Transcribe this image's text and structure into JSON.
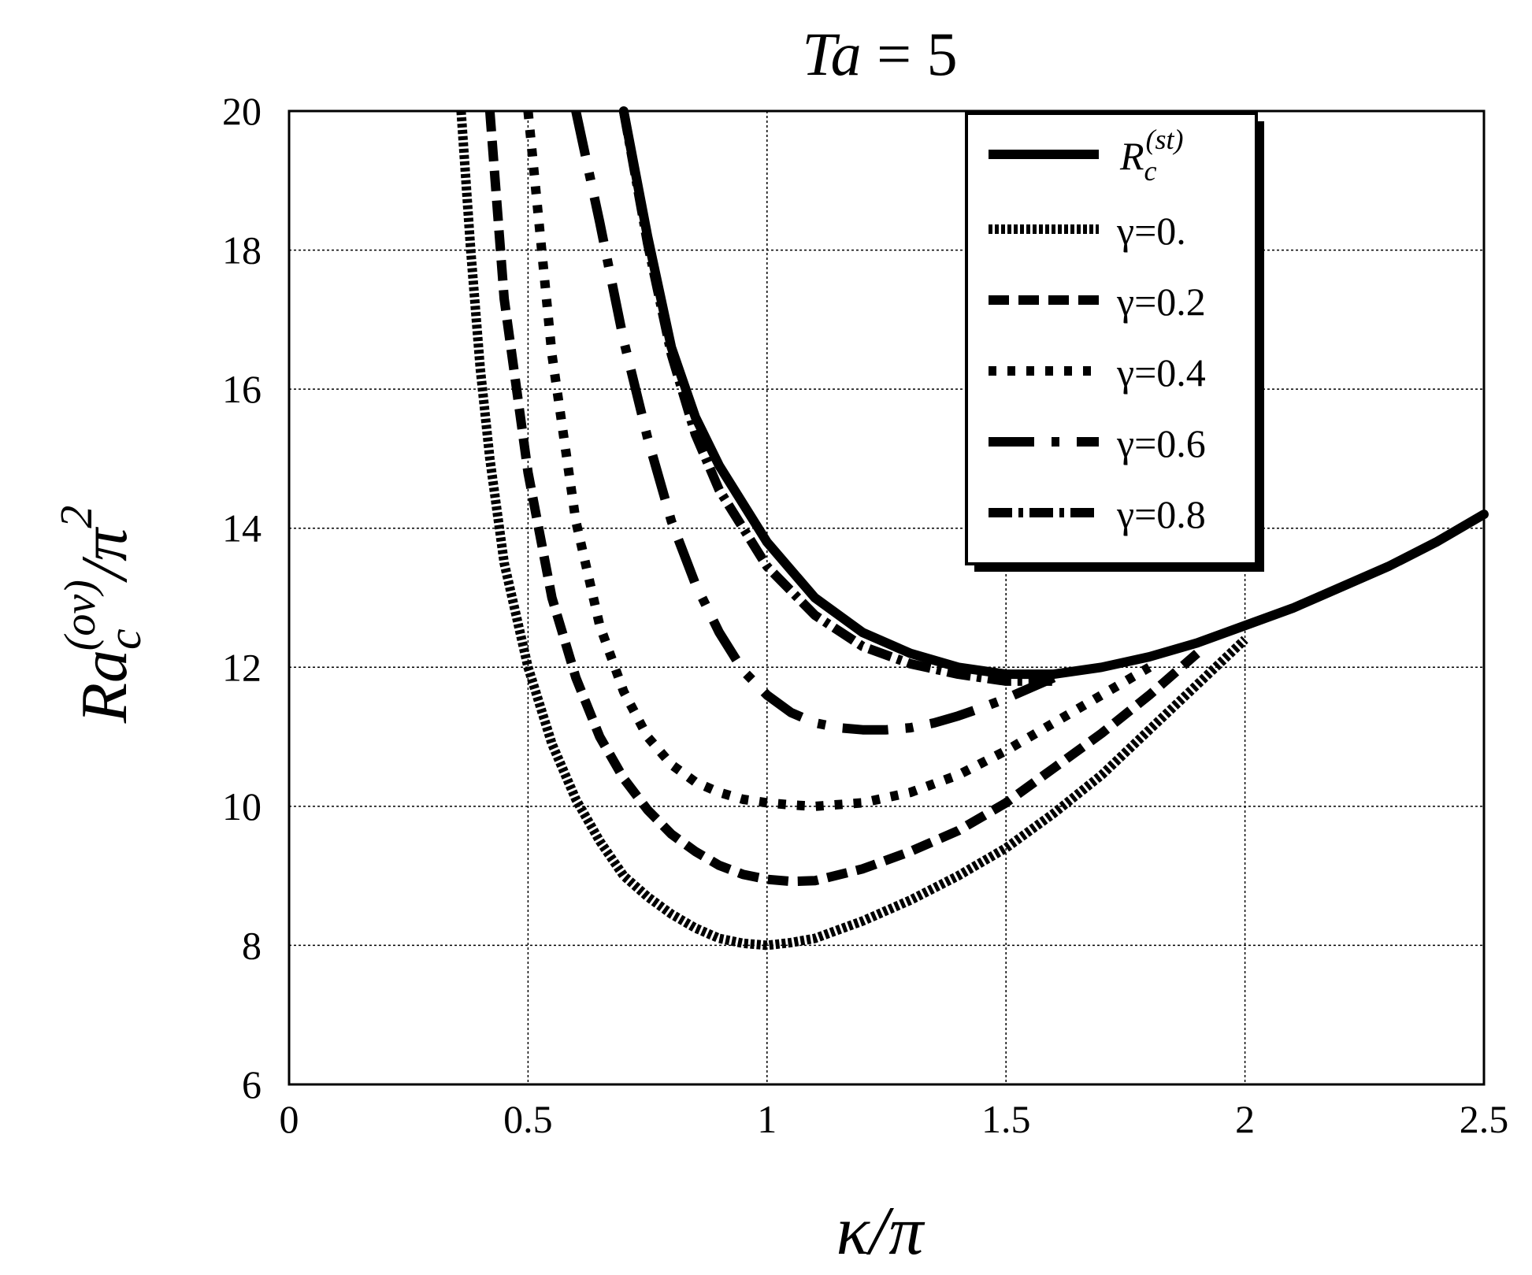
{
  "chart_data": {
    "type": "line",
    "title": {
      "main": "Ta",
      "value": " = 5"
    },
    "xlabel": {
      "main": "κ/π"
    },
    "ylabel": {
      "main": "Ra",
      "sub": "c",
      "sup": "(ov)",
      "tail": "/π",
      "tail_sup": "2"
    },
    "xlim": [
      0,
      2.5
    ],
    "ylim": [
      6,
      20
    ],
    "xticks": [
      "0",
      "0.5",
      "1",
      "1.5",
      "2",
      "2.5"
    ],
    "yticks": [
      "6",
      "8",
      "10",
      "12",
      "14",
      "16",
      "18",
      "20"
    ],
    "grid": true,
    "legend_position": "top-right",
    "series": [
      {
        "name": "R_c^(st)",
        "legend": {
          "main": "R",
          "sub": "c",
          "sup": "(st)"
        },
        "style": "solid",
        "x": [
          0.7,
          0.75,
          0.8,
          0.85,
          0.9,
          1.0,
          1.1,
          1.2,
          1.3,
          1.4,
          1.5,
          1.6,
          1.7,
          1.8,
          1.9,
          2.0,
          2.1,
          2.2,
          2.3,
          2.4,
          2.5
        ],
        "y": [
          20.0,
          18.2,
          16.6,
          15.6,
          14.9,
          13.8,
          13.0,
          12.5,
          12.2,
          12.0,
          11.9,
          11.9,
          12.0,
          12.15,
          12.35,
          12.6,
          12.85,
          13.15,
          13.45,
          13.8,
          14.2
        ]
      },
      {
        "name": "γ=0.",
        "legend": {
          "main": "γ=0."
        },
        "style": "dotted-fine",
        "x": [
          0.36,
          0.38,
          0.4,
          0.42,
          0.45,
          0.5,
          0.55,
          0.6,
          0.65,
          0.7,
          0.75,
          0.8,
          0.85,
          0.9,
          0.95,
          1.0,
          1.05,
          1.1,
          1.2,
          1.3,
          1.4,
          1.5,
          1.6,
          1.7,
          1.8,
          1.9,
          2.0
        ],
        "y": [
          20.0,
          18.0,
          16.3,
          15.0,
          13.5,
          12.0,
          10.9,
          10.1,
          9.5,
          9.0,
          8.7,
          8.45,
          8.25,
          8.1,
          8.03,
          8.0,
          8.04,
          8.1,
          8.35,
          8.65,
          9.0,
          9.4,
          9.9,
          10.45,
          11.1,
          11.75,
          12.4
        ]
      },
      {
        "name": "γ=0.2",
        "legend": {
          "main": "γ=0.2"
        },
        "style": "dashed",
        "x": [
          0.42,
          0.45,
          0.5,
          0.55,
          0.6,
          0.65,
          0.7,
          0.75,
          0.8,
          0.85,
          0.9,
          0.95,
          1.0,
          1.05,
          1.1,
          1.2,
          1.3,
          1.4,
          1.5,
          1.6,
          1.7,
          1.8,
          1.9
        ],
        "y": [
          20.0,
          17.3,
          14.8,
          13.0,
          11.85,
          11.0,
          10.4,
          9.95,
          9.6,
          9.35,
          9.15,
          9.02,
          8.95,
          8.92,
          8.93,
          9.1,
          9.35,
          9.65,
          10.05,
          10.55,
          11.05,
          11.6,
          12.2
        ]
      },
      {
        "name": "γ=0.4",
        "legend": {
          "main": "γ=0.4"
        },
        "style": "dotted-coarse",
        "x": [
          0.5,
          0.55,
          0.6,
          0.65,
          0.7,
          0.75,
          0.8,
          0.85,
          0.9,
          0.95,
          1.0,
          1.05,
          1.1,
          1.2,
          1.3,
          1.4,
          1.5,
          1.6,
          1.7,
          1.8
        ],
        "y": [
          20.0,
          16.5,
          14.1,
          12.6,
          11.65,
          11.0,
          10.6,
          10.35,
          10.2,
          10.1,
          10.05,
          10.02,
          10.0,
          10.05,
          10.2,
          10.45,
          10.8,
          11.2,
          11.6,
          12.0
        ]
      },
      {
        "name": "γ=0.6",
        "legend": {
          "main": "γ=0.6"
        },
        "style": "long-dash",
        "x": [
          0.6,
          0.65,
          0.7,
          0.75,
          0.8,
          0.85,
          0.9,
          0.95,
          1.0,
          1.05,
          1.1,
          1.15,
          1.2,
          1.25,
          1.3,
          1.35,
          1.4,
          1.45,
          1.5,
          1.55,
          1.6
        ],
        "y": [
          20.0,
          18.4,
          16.7,
          15.3,
          14.1,
          13.2,
          12.5,
          11.95,
          11.6,
          11.35,
          11.2,
          11.13,
          11.1,
          11.1,
          11.13,
          11.2,
          11.3,
          11.42,
          11.55,
          11.7,
          11.85
        ]
      },
      {
        "name": "γ=0.8",
        "legend": {
          "main": "γ=0.8"
        },
        "style": "dash-dot",
        "x": [
          0.7,
          0.75,
          0.8,
          0.85,
          0.9,
          1.0,
          1.1,
          1.2,
          1.3,
          1.4,
          1.5,
          1.6
        ],
        "y": [
          20.0,
          18.1,
          16.5,
          15.35,
          14.55,
          13.45,
          12.75,
          12.3,
          12.05,
          11.9,
          11.8,
          11.8
        ]
      }
    ]
  }
}
